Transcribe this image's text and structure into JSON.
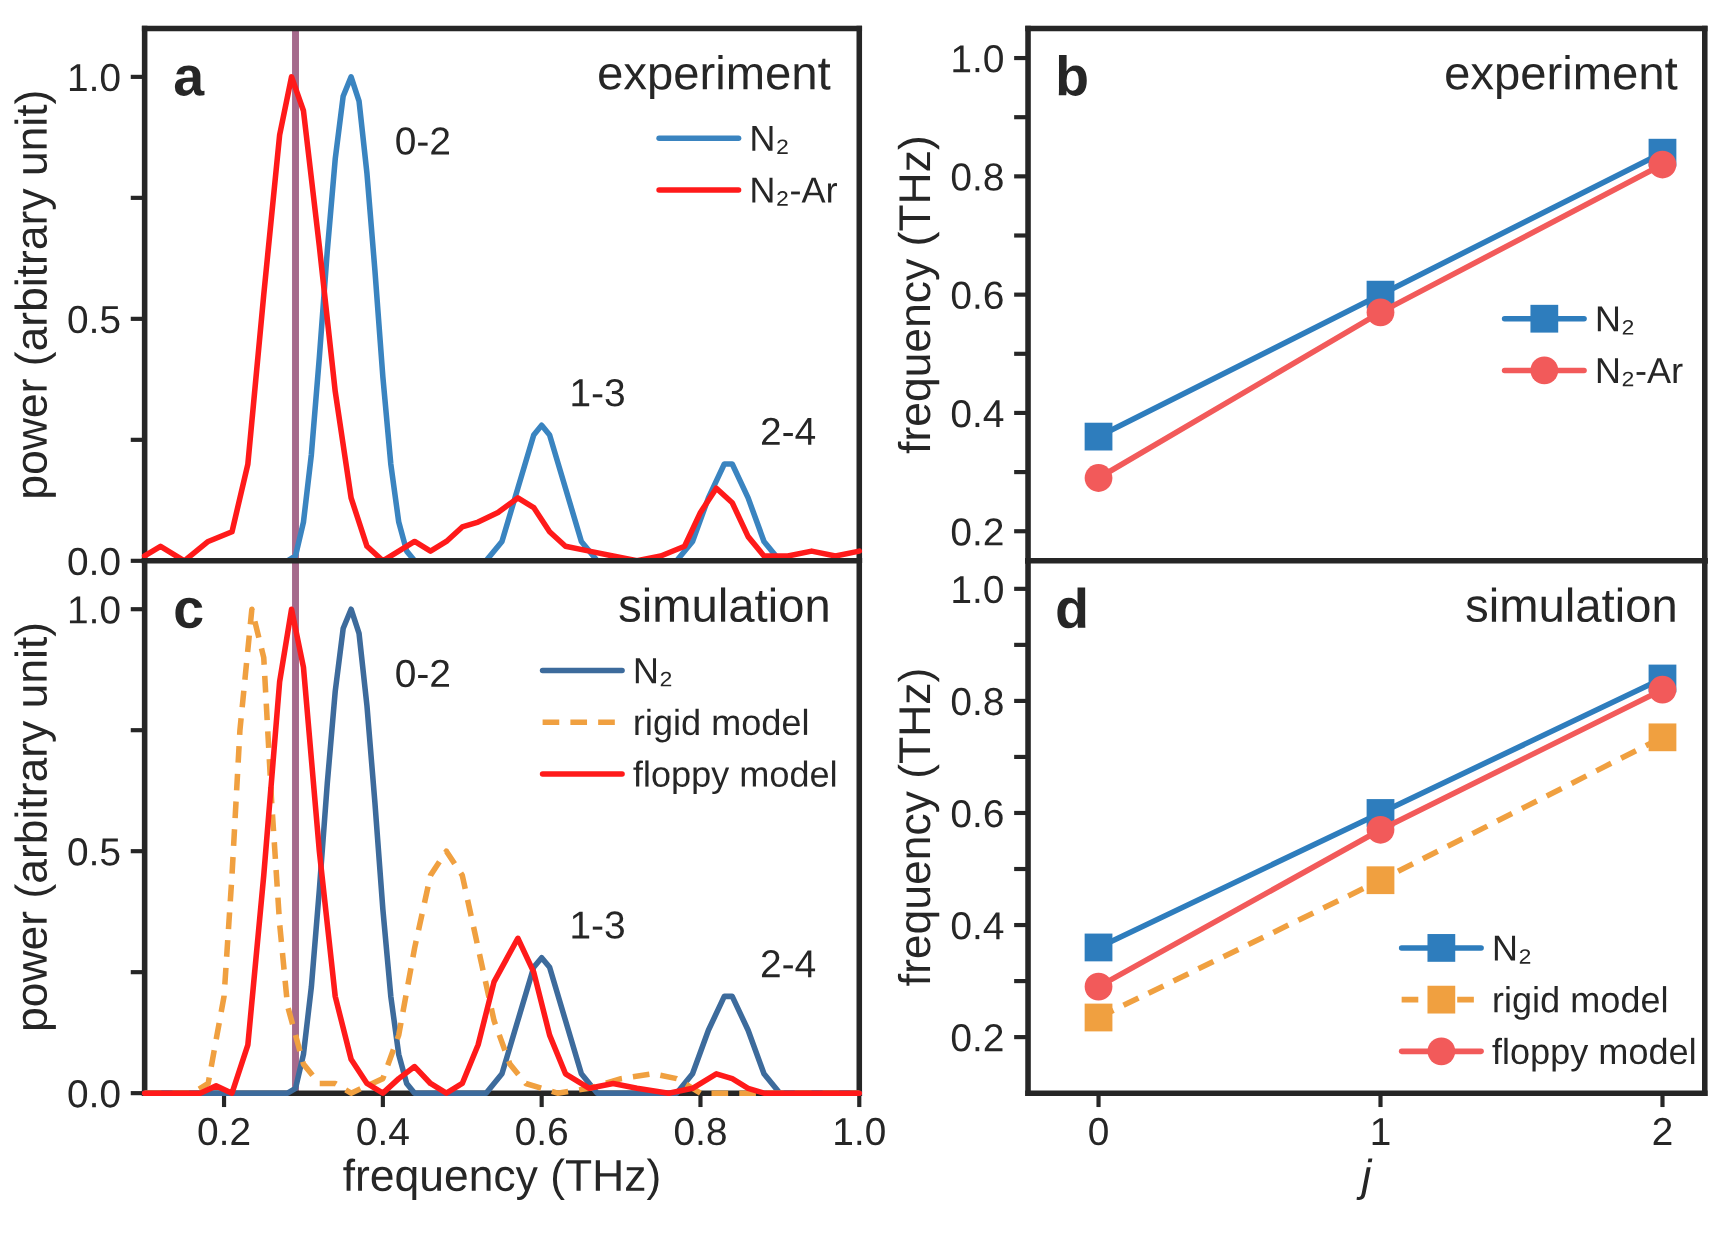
{
  "chart_data": [
    {
      "type": "line",
      "ylabel": "power (arbitrary unit)",
      "xlim": [
        0.1,
        1.0
      ],
      "ylim": [
        0,
        1.1
      ],
      "xticks": [
        {
          "value": 0.2,
          "label": null
        },
        {
          "value": 0.4,
          "label": null
        },
        {
          "value": 0.6,
          "label": null
        },
        {
          "value": 0.8,
          "label": null
        },
        {
          "value": 1.0,
          "label": null
        }
      ],
      "yticks": [
        {
          "value": 0,
          "label": "0.0"
        },
        {
          "value": 0.25,
          "label": null
        },
        {
          "value": 0.5,
          "label": "0.5"
        },
        {
          "value": 0.75,
          "label": null
        },
        {
          "value": 1.0,
          "label": "1.0"
        }
      ],
      "tick_labels": "y",
      "grid": false,
      "legend": "top right",
      "marker": "none",
      "line_style": "solid",
      "ref_lines": [
        {
          "axis": "x",
          "value": 0.29,
          "label": null,
          "color": "#9b5a80"
        }
      ],
      "annotations": [
        "a",
        "experiment",
        {
          "text": "0-2",
          "x": 0.38,
          "y": 0.8
        },
        {
          "text": "1-3",
          "x": 0.6,
          "y": 0.28
        },
        {
          "text": "2-4",
          "x": 0.84,
          "y": 0.2
        }
      ],
      "series": [
        {
          "name": "N₂",
          "color": "#3a84c0",
          "x": [
            0.1,
            0.28,
            0.29,
            0.3,
            0.31,
            0.32,
            0.33,
            0.34,
            0.35,
            0.36,
            0.37,
            0.38,
            0.39,
            0.4,
            0.41,
            0.42,
            0.43,
            0.44,
            0.53,
            0.55,
            0.57,
            0.59,
            0.6,
            0.61,
            0.63,
            0.65,
            0.67,
            0.77,
            0.79,
            0.81,
            0.83,
            0.84,
            0.86,
            0.88,
            0.9
          ],
          "values": [
            0,
            0,
            0.01,
            0.08,
            0.22,
            0.42,
            0.64,
            0.83,
            0.96,
            1.0,
            0.95,
            0.8,
            0.6,
            0.38,
            0.2,
            0.08,
            0.02,
            0,
            0,
            0.04,
            0.15,
            0.26,
            0.28,
            0.26,
            0.15,
            0.04,
            0,
            0,
            0.04,
            0.13,
            0.2,
            0.2,
            0.13,
            0.04,
            0
          ]
        },
        {
          "name": "N₂-Ar",
          "color": "#ff1a1a",
          "x": [
            0.1,
            0.12,
            0.15,
            0.18,
            0.21,
            0.23,
            0.25,
            0.27,
            0.285,
            0.3,
            0.32,
            0.34,
            0.36,
            0.38,
            0.4,
            0.42,
            0.44,
            0.46,
            0.48,
            0.5,
            0.52,
            0.545,
            0.57,
            0.59,
            0.61,
            0.63,
            0.66,
            0.69,
            0.72,
            0.75,
            0.78,
            0.8,
            0.82,
            0.84,
            0.86,
            0.88,
            0.91,
            0.94,
            0.97,
            1.0
          ],
          "values": [
            0.01,
            0.03,
            0,
            0.04,
            0.06,
            0.2,
            0.55,
            0.88,
            1.0,
            0.93,
            0.65,
            0.35,
            0.13,
            0.03,
            0,
            0.02,
            0.04,
            0.02,
            0.04,
            0.07,
            0.08,
            0.1,
            0.13,
            0.11,
            0.06,
            0.03,
            0.02,
            0.01,
            0,
            0.01,
            0.03,
            0.1,
            0.15,
            0.12,
            0.05,
            0.01,
            0.01,
            0.02,
            0.01,
            0.02
          ]
        }
      ]
    },
    {
      "type": "line",
      "ylabel": "frequency (THz)",
      "xlim": [
        -0.25,
        2.15
      ],
      "ylim": [
        0.15,
        1.05
      ],
      "xticks": [
        {
          "value": 0,
          "label": null
        },
        {
          "value": 1,
          "label": null
        },
        {
          "value": 2,
          "label": null
        }
      ],
      "yticks": [
        {
          "value": 0.2,
          "label": "0.2"
        },
        {
          "value": 0.3,
          "label": null
        },
        {
          "value": 0.4,
          "label": "0.4"
        },
        {
          "value": 0.5,
          "label": null
        },
        {
          "value": 0.6,
          "label": "0.6"
        },
        {
          "value": 0.7,
          "label": null
        },
        {
          "value": 0.8,
          "label": "0.8"
        },
        {
          "value": 0.9,
          "label": null
        },
        {
          "value": 1.0,
          "label": "1.0"
        }
      ],
      "tick_labels": "y",
      "grid": false,
      "legend": "right",
      "annotations": [
        "b",
        "experiment"
      ],
      "series": [
        {
          "name": "N₂",
          "color": "#2e7dbd",
          "marker": "square",
          "line_style": "solid",
          "x": [
            0,
            1,
            2
          ],
          "values": [
            0.36,
            0.6,
            0.84
          ]
        },
        {
          "name": "N₂-Ar",
          "color": "#f25a5a",
          "marker": "circle",
          "line_style": "solid",
          "x": [
            0,
            1,
            2
          ],
          "values": [
            0.29,
            0.57,
            0.82
          ]
        }
      ]
    },
    {
      "type": "line",
      "xlabel": "frequency (THz)",
      "ylabel": "power (arbitrary unit)",
      "xlim": [
        0.1,
        1.0
      ],
      "ylim": [
        0,
        1.1
      ],
      "xticks": [
        {
          "value": 0.2,
          "label": "0.2"
        },
        {
          "value": 0.4,
          "label": "0.4"
        },
        {
          "value": 0.6,
          "label": "0.6"
        },
        {
          "value": 0.8,
          "label": "0.8"
        },
        {
          "value": 1.0,
          "label": "1.0"
        }
      ],
      "yticks": [
        {
          "value": 0,
          "label": "0.0"
        },
        {
          "value": 0.25,
          "label": null
        },
        {
          "value": 0.5,
          "label": "0.5"
        },
        {
          "value": 0.75,
          "label": null
        },
        {
          "value": 1.0,
          "label": "1.0"
        }
      ],
      "grid": false,
      "legend": "top right",
      "marker": "none",
      "ref_lines": [
        {
          "axis": "x",
          "value": 0.29,
          "label": null,
          "color": "#9b5a80"
        }
      ],
      "annotations": [
        "c",
        "simulation",
        {
          "text": "0-2",
          "x": 0.38,
          "y": 0.8
        },
        {
          "text": "1-3",
          "x": 0.6,
          "y": 0.28
        },
        {
          "text": "2-4",
          "x": 0.84,
          "y": 0.2
        }
      ],
      "series": [
        {
          "name": "N₂",
          "color": "#3d6b9c",
          "line_style": "solid",
          "x": [
            0.1,
            0.28,
            0.29,
            0.3,
            0.31,
            0.32,
            0.33,
            0.34,
            0.35,
            0.36,
            0.37,
            0.38,
            0.39,
            0.4,
            0.41,
            0.42,
            0.43,
            0.44,
            0.53,
            0.55,
            0.57,
            0.59,
            0.6,
            0.61,
            0.63,
            0.65,
            0.67,
            0.77,
            0.79,
            0.81,
            0.83,
            0.84,
            0.86,
            0.88,
            0.9,
            1.0
          ],
          "values": [
            0,
            0,
            0.01,
            0.08,
            0.22,
            0.42,
            0.64,
            0.83,
            0.96,
            1.0,
            0.95,
            0.8,
            0.6,
            0.38,
            0.2,
            0.08,
            0.02,
            0,
            0,
            0.04,
            0.15,
            0.26,
            0.28,
            0.26,
            0.15,
            0.04,
            0,
            0,
            0.04,
            0.13,
            0.2,
            0.2,
            0.13,
            0.04,
            0,
            0
          ]
        },
        {
          "name": "rigid model",
          "color": "#f0a040",
          "line_style": "dashed",
          "x": [
            0.1,
            0.16,
            0.18,
            0.2,
            0.21,
            0.22,
            0.235,
            0.25,
            0.26,
            0.27,
            0.28,
            0.3,
            0.32,
            0.34,
            0.36,
            0.4,
            0.42,
            0.44,
            0.46,
            0.48,
            0.5,
            0.52,
            0.54,
            0.56,
            0.58,
            0.62,
            0.66,
            0.7,
            0.74,
            0.77,
            0.8,
            1.0
          ],
          "values": [
            0,
            0,
            0.02,
            0.2,
            0.45,
            0.75,
            1.0,
            0.9,
            0.6,
            0.35,
            0.18,
            0.06,
            0.02,
            0.02,
            0,
            0.03,
            0.12,
            0.3,
            0.45,
            0.5,
            0.45,
            0.3,
            0.15,
            0.06,
            0.02,
            0,
            0.01,
            0.03,
            0.04,
            0.03,
            0,
            0
          ]
        },
        {
          "name": "floppy model",
          "color": "#ff1a1a",
          "line_style": "solid",
          "x": [
            0.1,
            0.17,
            0.19,
            0.21,
            0.23,
            0.25,
            0.27,
            0.285,
            0.3,
            0.32,
            0.34,
            0.36,
            0.38,
            0.4,
            0.42,
            0.44,
            0.46,
            0.48,
            0.5,
            0.52,
            0.54,
            0.57,
            0.59,
            0.61,
            0.63,
            0.66,
            0.69,
            0.72,
            0.76,
            0.79,
            0.82,
            0.84,
            0.86,
            0.88,
            1.0
          ],
          "values": [
            0,
            0,
            0.015,
            0,
            0.1,
            0.45,
            0.85,
            1.0,
            0.88,
            0.5,
            0.2,
            0.07,
            0.02,
            0,
            0.03,
            0.055,
            0.02,
            0,
            0.02,
            0.1,
            0.23,
            0.32,
            0.25,
            0.12,
            0.04,
            0.01,
            0.02,
            0.01,
            0,
            0.01,
            0.04,
            0.03,
            0.01,
            0,
            0
          ]
        }
      ]
    },
    {
      "type": "line",
      "xlabel": "j",
      "ylabel": "frequency (THz)",
      "xlim": [
        -0.25,
        2.15
      ],
      "ylim": [
        0.1,
        1.05
      ],
      "xticks": [
        0,
        1,
        2
      ],
      "yticks": [
        {
          "value": 0.2,
          "label": "0.2"
        },
        {
          "value": 0.3,
          "label": null
        },
        {
          "value": 0.4,
          "label": "0.4"
        },
        {
          "value": 0.5,
          "label": null
        },
        {
          "value": 0.6,
          "label": "0.6"
        },
        {
          "value": 0.7,
          "label": null
        },
        {
          "value": 0.8,
          "label": "0.8"
        },
        {
          "value": 0.9,
          "label": null
        },
        {
          "value": 1.0,
          "label": "1.0"
        }
      ],
      "grid": false,
      "legend": "bottom right",
      "annotations": [
        "d",
        "simulation"
      ],
      "series": [
        {
          "name": "N₂",
          "color": "#2e7dbd",
          "marker": "square",
          "line_style": "solid",
          "x": [
            0,
            1,
            2
          ],
          "values": [
            0.36,
            0.6,
            0.84
          ]
        },
        {
          "name": "rigid model",
          "color": "#f0a040",
          "marker": "square",
          "line_style": "dashed",
          "x": [
            0,
            1,
            2
          ],
          "values": [
            0.235,
            0.48,
            0.735
          ]
        },
        {
          "name": "floppy model",
          "color": "#f25a5a",
          "marker": "circle",
          "line_style": "solid",
          "x": [
            0,
            1,
            2
          ],
          "values": [
            0.29,
            0.57,
            0.82
          ]
        }
      ]
    }
  ]
}
